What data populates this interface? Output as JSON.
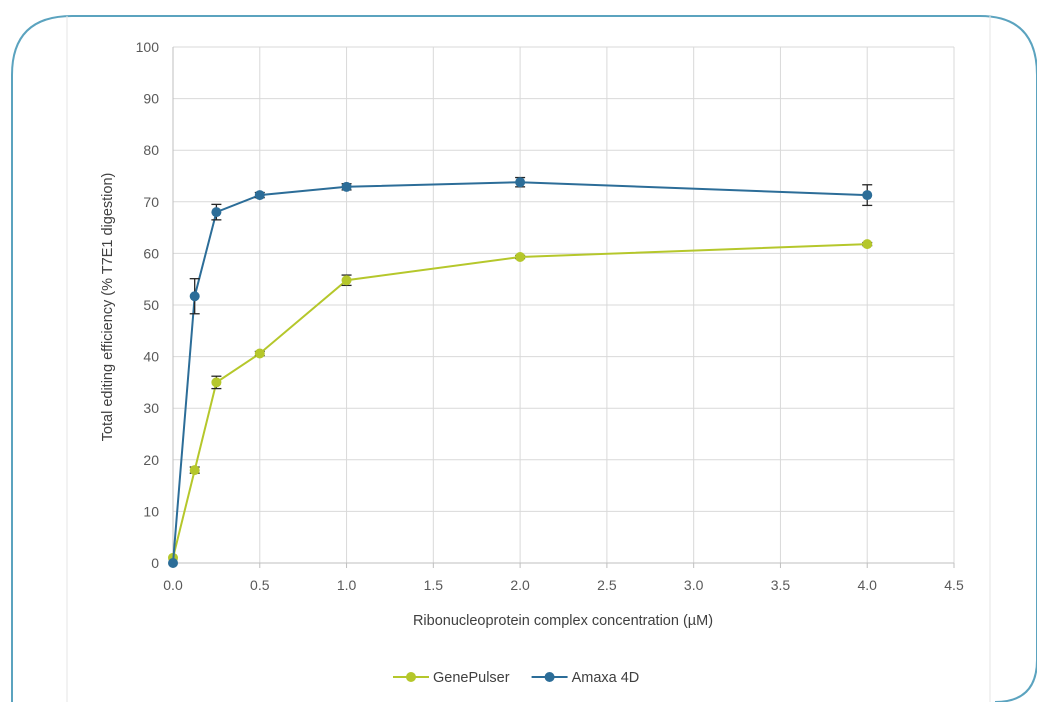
{
  "chart_data": {
    "type": "line",
    "title": "",
    "xlabel": "Ribonucleoprotein complex concentration (µM)",
    "ylabel": "Total editing efficiency (% T7E1 digestion)",
    "xlim": [
      0,
      4.5
    ],
    "ylim": [
      0,
      100
    ],
    "x_ticks": [
      "0.0",
      "0.5",
      "1.0",
      "1.5",
      "2.0",
      "2.5",
      "3.0",
      "3.5",
      "4.0",
      "4.5"
    ],
    "y_ticks": [
      "0",
      "10",
      "20",
      "30",
      "40",
      "50",
      "60",
      "70",
      "80",
      "90",
      "100"
    ],
    "grid": "vertical-and-horizontal",
    "legend_position": "bottom",
    "frame_color": "#5ba3bf",
    "series": [
      {
        "name": "GenePulser",
        "color": "#b5c72b",
        "points": [
          {
            "x": 0.0,
            "y": 1.0,
            "err": 0
          },
          {
            "x": 0.125,
            "y": 18.0,
            "err": 0.6
          },
          {
            "x": 0.25,
            "y": 35.0,
            "err": 1.2
          },
          {
            "x": 0.5,
            "y": 40.6,
            "err": 0.4
          },
          {
            "x": 1.0,
            "y": 54.8,
            "err": 1.0
          },
          {
            "x": 2.0,
            "y": 59.3,
            "err": 0.3
          },
          {
            "x": 4.0,
            "y": 61.8,
            "err": 0.3
          }
        ]
      },
      {
        "name": "Amaxa 4D",
        "color": "#2c6d98",
        "points": [
          {
            "x": 0.0,
            "y": 0.0,
            "err": 0
          },
          {
            "x": 0.125,
            "y": 51.7,
            "err": 3.4
          },
          {
            "x": 0.25,
            "y": 68.0,
            "err": 1.5
          },
          {
            "x": 0.5,
            "y": 71.3,
            "err": 0.5
          },
          {
            "x": 1.0,
            "y": 72.9,
            "err": 0.6
          },
          {
            "x": 2.0,
            "y": 73.8,
            "err": 0.9
          },
          {
            "x": 4.0,
            "y": 71.3,
            "err": 2.0
          }
        ]
      }
    ]
  }
}
